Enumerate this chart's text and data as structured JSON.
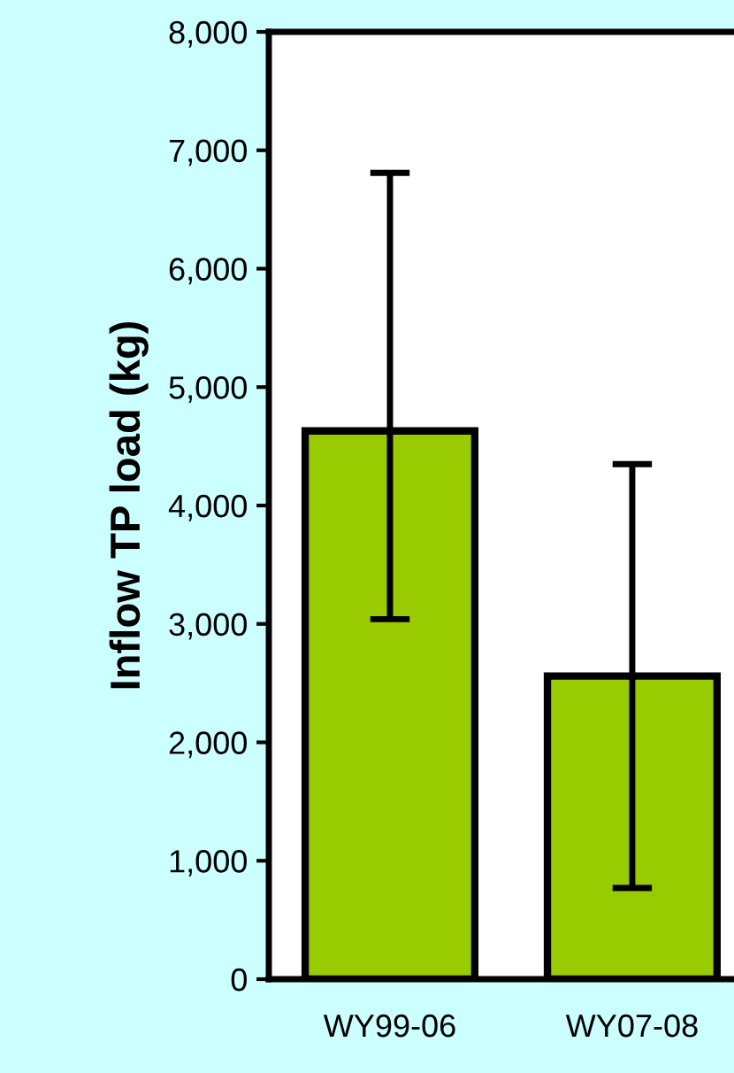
{
  "chart_data": {
    "type": "bar",
    "ylabel": "Inflow TP load (kg)",
    "categories": [
      "WY99-06",
      "WY07-08"
    ],
    "values": [
      4630,
      2560
    ],
    "errors": [
      [
        3040,
        6810
      ],
      [
        770,
        4350
      ]
    ],
    "color": "#99cc00",
    "ylim": [
      0,
      8000
    ],
    "yticks": [
      {
        "value": 0,
        "label": "0"
      },
      {
        "value": 1000,
        "label": "1,000"
      },
      {
        "value": 2000,
        "label": "2,000"
      },
      {
        "value": 3000,
        "label": "3,000"
      },
      {
        "value": 4000,
        "label": "4,000"
      },
      {
        "value": 5000,
        "label": "5,000"
      },
      {
        "value": 6000,
        "label": "6,000"
      },
      {
        "value": 7000,
        "label": "7,000"
      },
      {
        "value": 8000,
        "label": "8,000"
      }
    ],
    "grid": false,
    "legend": false
  }
}
